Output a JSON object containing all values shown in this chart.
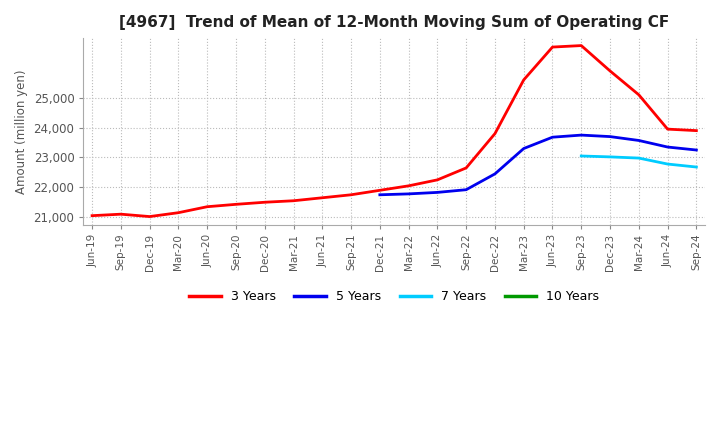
{
  "title": "[4967]  Trend of Mean of 12-Month Moving Sum of Operating CF",
  "ylabel": "Amount (million yen)",
  "ylim": [
    20750,
    27000
  ],
  "yticks": [
    21000,
    22000,
    23000,
    24000,
    25000
  ],
  "background_color": "#ffffff",
  "plot_bg_color": "#ffffff",
  "grid_color": "#bbbbbb",
  "x_labels": [
    "Jun-19",
    "Sep-19",
    "Dec-19",
    "Mar-20",
    "Jun-20",
    "Sep-20",
    "Dec-20",
    "Mar-21",
    "Jun-21",
    "Sep-21",
    "Dec-21",
    "Mar-22",
    "Jun-22",
    "Sep-22",
    "Dec-22",
    "Mar-23",
    "Jun-23",
    "Sep-23",
    "Dec-23",
    "Mar-24",
    "Jun-24",
    "Sep-24"
  ],
  "series": {
    "3 Years": {
      "color": "#ff0000",
      "data": [
        21050,
        21100,
        21020,
        21150,
        21350,
        21430,
        21500,
        21550,
        21650,
        21750,
        21900,
        22050,
        22250,
        22650,
        23800,
        25600,
        26700,
        26750,
        25900,
        25100,
        23950,
        23900
      ]
    },
    "5 Years": {
      "color": "#0000ee",
      "data": [
        null,
        null,
        null,
        null,
        null,
        null,
        null,
        null,
        null,
        null,
        21750,
        21780,
        21830,
        21920,
        22450,
        23300,
        23680,
        23750,
        23700,
        23570,
        23350,
        23250
      ]
    },
    "7 Years": {
      "color": "#00ccff",
      "data": [
        null,
        null,
        null,
        null,
        null,
        null,
        null,
        null,
        null,
        null,
        null,
        null,
        null,
        null,
        null,
        null,
        null,
        23050,
        23020,
        22980,
        22780,
        22680
      ]
    },
    "10 Years": {
      "color": "#009900",
      "data": [
        null,
        null,
        null,
        null,
        null,
        null,
        null,
        null,
        null,
        null,
        null,
        null,
        null,
        null,
        null,
        null,
        null,
        null,
        null,
        null,
        null,
        null
      ]
    }
  },
  "legend_labels": [
    "3 Years",
    "5 Years",
    "7 Years",
    "10 Years"
  ],
  "legend_colors": [
    "#ff0000",
    "#0000ee",
    "#00ccff",
    "#009900"
  ]
}
